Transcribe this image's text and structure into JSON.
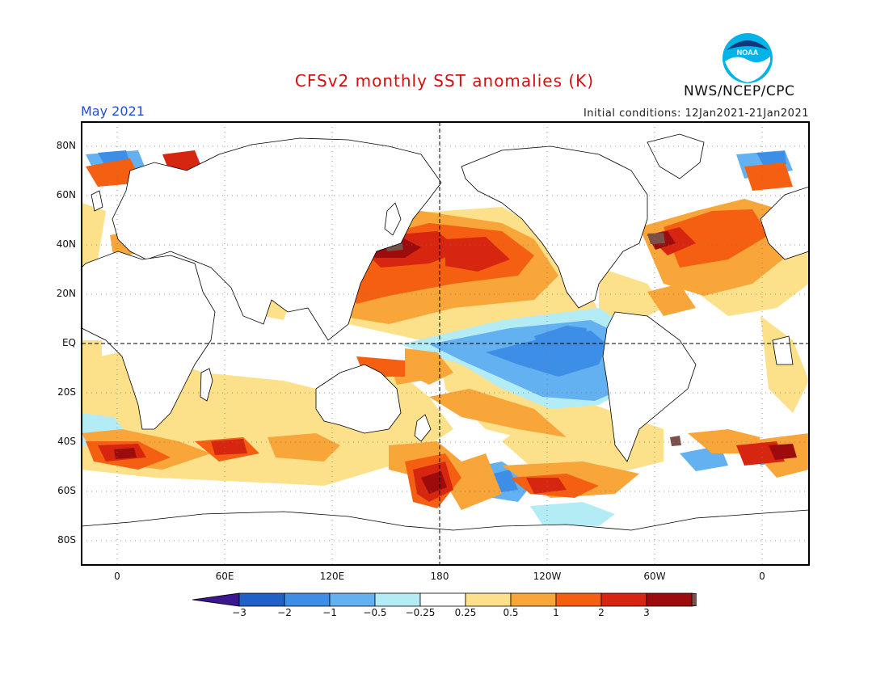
{
  "title": "CFSv2 monthly SST anomalies (K)",
  "month": "May 2021",
  "initial_conditions": "Initial conditions: 12Jan2021-21Jan2021",
  "agency": "NWS/NCEP/CPC",
  "logo_text": "NOAA",
  "colors": {
    "title": "#d01010",
    "month": "#1f4fd8",
    "bins": [
      "#3a168f",
      "#1e62c8",
      "#3c8ee6",
      "#63b1f0",
      "#b4ecf6",
      "#ffffff",
      "#fde08a",
      "#f8a53a",
      "#f45f12",
      "#d7260f",
      "#9c0c0c",
      "#7a5048"
    ]
  },
  "lat_labels": [
    "80N",
    "60N",
    "40N",
    "20N",
    "EQ",
    "20S",
    "40S",
    "60S",
    "80S"
  ],
  "lon_labels": [
    "0",
    "60E",
    "120E",
    "180",
    "120W",
    "60W",
    "0"
  ],
  "colorbar_labels": [
    "−3",
    "−2",
    "−1",
    "−0.5",
    "−0.25",
    "0.25",
    "0.5",
    "1",
    "2",
    "3"
  ]
}
